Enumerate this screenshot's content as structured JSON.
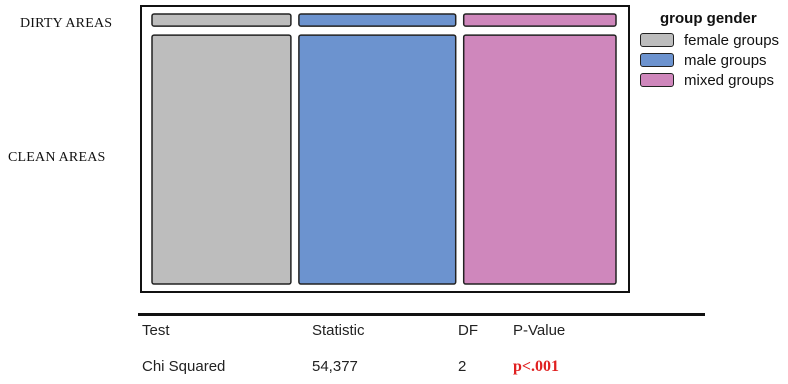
{
  "chart_data": {
    "type": "mosaic",
    "row_labels": [
      "DIRTY AREAS",
      "CLEAN AREAS"
    ],
    "legend": {
      "title": "group gender",
      "placement": "top-right",
      "items": [
        {
          "label": "female groups",
          "color": "#bdbdbd"
        },
        {
          "label": "male groups",
          "color": "#6c93cf"
        },
        {
          "label": "mixed groups",
          "color": "#cf87bc"
        }
      ]
    },
    "column_shares": [
      0.31,
      0.35,
      0.34
    ],
    "dirty_share": [
      0.05,
      0.05,
      0.05
    ]
  },
  "table": {
    "headers": [
      "Test",
      "Statistic",
      "DF",
      "P-Value"
    ],
    "rows": [
      [
        "Chi Squared",
        "54,377",
        "2",
        "p<.001"
      ]
    ]
  }
}
